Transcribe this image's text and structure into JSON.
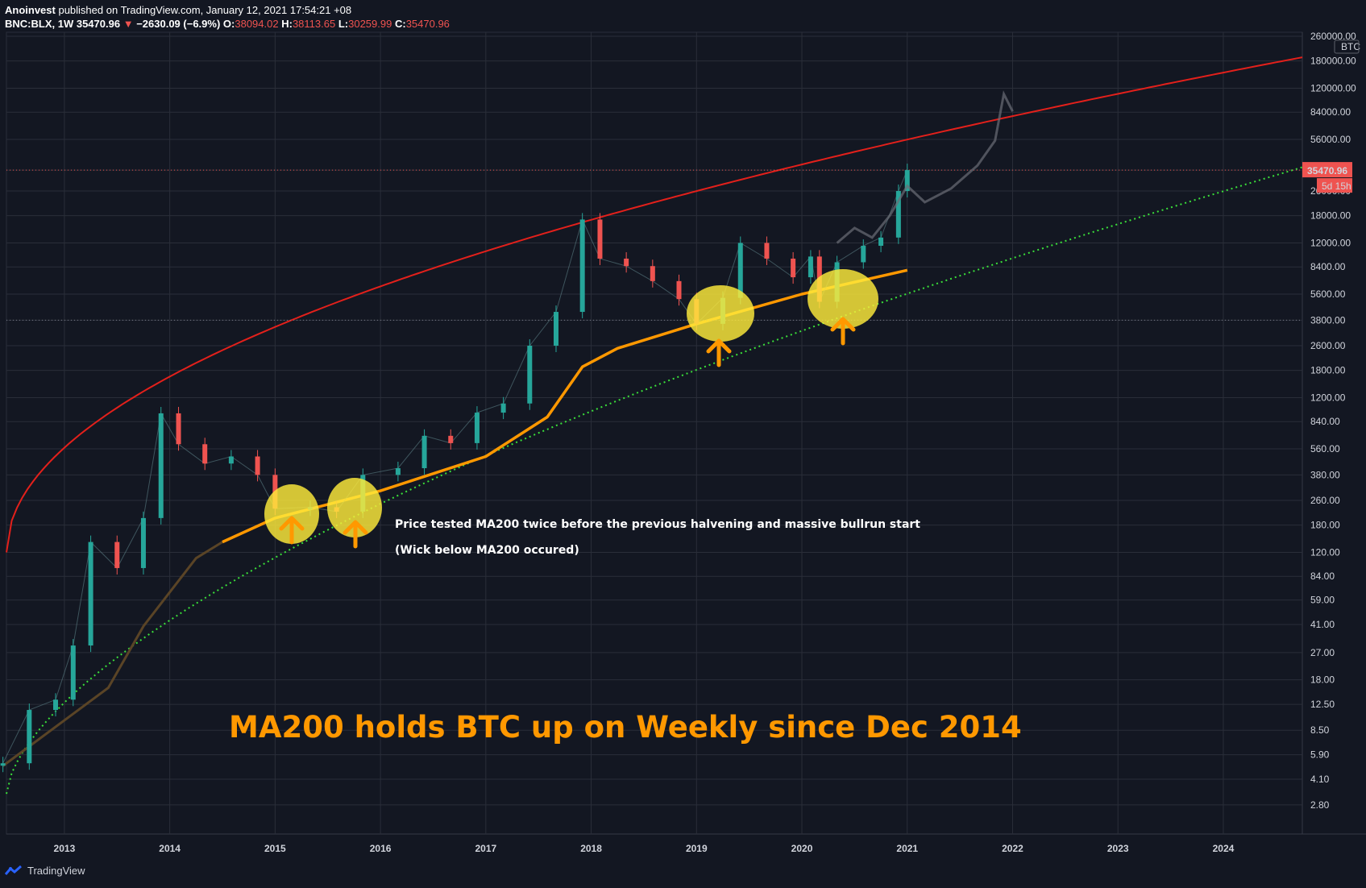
{
  "header": {
    "author": "Anoinvest",
    "published": "published on TradingView.com, January 12, 2021 17:54:21 +08",
    "symbol": "BNC:BLX, 1W",
    "last": "35470.96",
    "change": "−2630.09 (−6.9%)",
    "o_label": "O:",
    "o": "38094.02",
    "h_label": "H:",
    "h": "38113.65",
    "l_label": "L:",
    "l": "30259.99",
    "c_label": "C:",
    "c": "35470.96"
  },
  "footer": {
    "brand": "TradingView"
  },
  "colors": {
    "background": "#131722",
    "grid": "#2a2e39",
    "up": "#26a69a",
    "down": "#ef5350",
    "ma200": "#ff9800",
    "log_curve": "#e3201b",
    "trend": "#3ae03a",
    "circle": "#ffeb3b"
  },
  "chart_data": {
    "type": "candlestick",
    "x_axis": {
      "ticks": [
        "2013",
        "2014",
        "2015",
        "2016",
        "2017",
        "2018",
        "2019",
        "2020",
        "2021",
        "2022",
        "2023",
        "2024"
      ]
    },
    "y_axis": {
      "scale": "log",
      "unit": "BTC",
      "ticks": [
        "260000.00",
        "180000.00",
        "120000.00",
        "84000.00",
        "56000.00",
        "35470.96",
        "26000.00",
        "18000.00",
        "12000.00",
        "8400.00",
        "5600.00",
        "3800.00",
        "2600.00",
        "1800.00",
        "1200.00",
        "840.00",
        "560.00",
        "380.00",
        "260.00",
        "180.00",
        "120.00",
        "84.00",
        "59.00",
        "41.00",
        "27.00",
        "18.00",
        "12.50",
        "8.50",
        "5.90",
        "4.10",
        "2.80"
      ]
    },
    "last_price": {
      "value": "35470.96",
      "countdown": "5d 15h"
    },
    "price_series": [
      {
        "x": "2012-06",
        "y": 5.2
      },
      {
        "x": "2012-09",
        "y": 11.5
      },
      {
        "x": "2012-12",
        "y": 13.4
      },
      {
        "x": "2013-02",
        "y": 30
      },
      {
        "x": "2013-04",
        "y": 140
      },
      {
        "x": "2013-07",
        "y": 95
      },
      {
        "x": "2013-10",
        "y": 200
      },
      {
        "x": "2013-12",
        "y": 950
      },
      {
        "x": "2014-02",
        "y": 600
      },
      {
        "x": "2014-05",
        "y": 450
      },
      {
        "x": "2014-08",
        "y": 500
      },
      {
        "x": "2014-11",
        "y": 380
      },
      {
        "x": "2015-01",
        "y": 230
      },
      {
        "x": "2015-05",
        "y": 235
      },
      {
        "x": "2015-08",
        "y": 220
      },
      {
        "x": "2015-11",
        "y": 380
      },
      {
        "x": "2016-03",
        "y": 420
      },
      {
        "x": "2016-06",
        "y": 680
      },
      {
        "x": "2016-09",
        "y": 610
      },
      {
        "x": "2016-12",
        "y": 960
      },
      {
        "x": "2017-03",
        "y": 1100
      },
      {
        "x": "2017-06",
        "y": 2600
      },
      {
        "x": "2017-09",
        "y": 4300
      },
      {
        "x": "2017-12",
        "y": 17000
      },
      {
        "x": "2018-02",
        "y": 9500
      },
      {
        "x": "2018-05",
        "y": 8500
      },
      {
        "x": "2018-08",
        "y": 6800
      },
      {
        "x": "2018-11",
        "y": 5200
      },
      {
        "x": "2019-01",
        "y": 3600
      },
      {
        "x": "2019-04",
        "y": 5300
      },
      {
        "x": "2019-06",
        "y": 12000
      },
      {
        "x": "2019-09",
        "y": 9500
      },
      {
        "x": "2019-12",
        "y": 7200
      },
      {
        "x": "2020-02",
        "y": 9800
      },
      {
        "x": "2020-03",
        "y": 5000
      },
      {
        "x": "2020-05",
        "y": 9000
      },
      {
        "x": "2020-08",
        "y": 11500
      },
      {
        "x": "2020-10",
        "y": 13000
      },
      {
        "x": "2020-12",
        "y": 26000
      },
      {
        "x": "2021-01",
        "y": 35470.96
      }
    ],
    "projection_series": [
      {
        "x": "2020-05",
        "y": 12000
      },
      {
        "x": "2020-07",
        "y": 15000
      },
      {
        "x": "2020-09",
        "y": 13000
      },
      {
        "x": "2020-11",
        "y": 18000
      },
      {
        "x": "2021-01",
        "y": 28000
      },
      {
        "x": "2021-03",
        "y": 22000
      },
      {
        "x": "2021-06",
        "y": 27000
      },
      {
        "x": "2021-09",
        "y": 38000
      },
      {
        "x": "2021-11",
        "y": 55000
      },
      {
        "x": "2021-12",
        "y": 110000
      },
      {
        "x": "2022-01",
        "y": 85000
      }
    ],
    "ma200_series": [
      {
        "x": "2012-06",
        "y": 5
      },
      {
        "x": "2013-06",
        "y": 16
      },
      {
        "x": "2013-10",
        "y": 40
      },
      {
        "x": "2014-04",
        "y": 110
      },
      {
        "x": "2014-07",
        "y": 140
      },
      {
        "x": "2015-01",
        "y": 200
      },
      {
        "x": "2016-01",
        "y": 300
      },
      {
        "x": "2017-01",
        "y": 500
      },
      {
        "x": "2017-08",
        "y": 900
      },
      {
        "x": "2017-12",
        "y": 1900
      },
      {
        "x": "2018-04",
        "y": 2500
      },
      {
        "x": "2019-01",
        "y": 3600
      },
      {
        "x": "2020-01",
        "y": 5600
      },
      {
        "x": "2021-01",
        "y": 8000
      }
    ],
    "annotations": [
      "Price tested MA200 twice before the previous halvening and massive bullrun start",
      "(Wick below MA200 occured)",
      "MA200 holds BTC up on Weekly since Dec 2014"
    ],
    "grid": true
  }
}
